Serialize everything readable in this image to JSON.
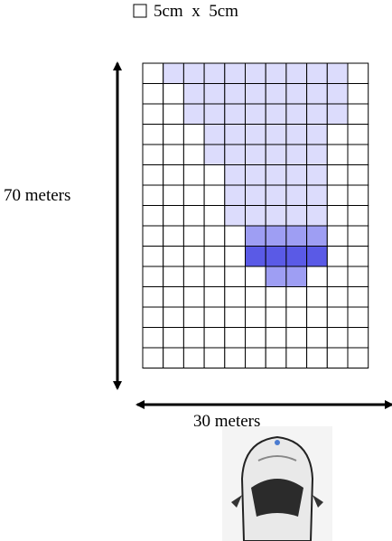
{
  "legend": {
    "label": "5cm  x  5cm"
  },
  "dimensions": {
    "height": "70 meters",
    "width": "30 meters"
  }
}
